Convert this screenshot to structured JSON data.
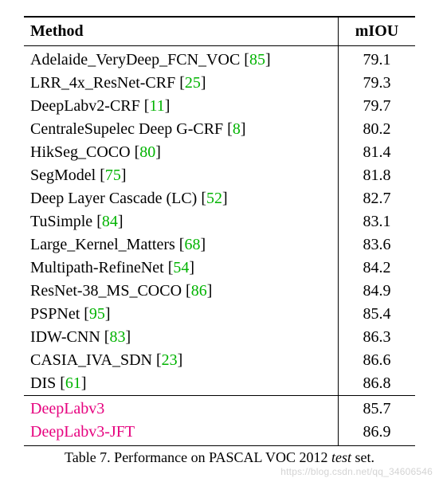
{
  "table": {
    "headers": {
      "method": "Method",
      "miou": "mIOU"
    },
    "rows": [
      {
        "name": "Adelaide_VeryDeep_FCN_VOC",
        "ref": "85",
        "miou": "79.1",
        "pink": false
      },
      {
        "name": "LRR_4x_ResNet-CRF",
        "ref": "25",
        "miou": "79.3",
        "pink": false
      },
      {
        "name": "DeepLabv2-CRF",
        "ref": "11",
        "miou": "79.7",
        "pink": false
      },
      {
        "name": "CentraleSupelec Deep G-CRF",
        "ref": "8",
        "miou": "80.2",
        "pink": false
      },
      {
        "name": "HikSeg_COCO",
        "ref": "80",
        "miou": "81.4",
        "pink": false
      },
      {
        "name": "SegModel",
        "ref": "75",
        "miou": "81.8",
        "pink": false
      },
      {
        "name": "Deep Layer Cascade (LC)",
        "ref": "52",
        "miou": "82.7",
        "pink": false
      },
      {
        "name": "TuSimple",
        "ref": "84",
        "miou": "83.1",
        "pink": false
      },
      {
        "name": "Large_Kernel_Matters",
        "ref": "68",
        "miou": "83.6",
        "pink": false
      },
      {
        "name": "Multipath-RefineNet",
        "ref": "54",
        "miou": "84.2",
        "pink": false
      },
      {
        "name": "ResNet-38_MS_COCO",
        "ref": "86",
        "miou": "84.9",
        "pink": false
      },
      {
        "name": "PSPNet",
        "ref": "95",
        "miou": "85.4",
        "pink": false
      },
      {
        "name": "IDW-CNN",
        "ref": "83",
        "miou": "86.3",
        "pink": false
      },
      {
        "name": "CASIA_IVA_SDN",
        "ref": "23",
        "miou": "86.6",
        "pink": false
      },
      {
        "name": "DIS",
        "ref": "61",
        "miou": "86.8",
        "pink": false
      },
      {
        "name": "DeepLabv3",
        "ref": "",
        "miou": "85.7",
        "pink": true,
        "sep": true
      },
      {
        "name": "DeepLabv3-JFT",
        "ref": "",
        "miou": "86.9",
        "pink": true
      }
    ],
    "colors": {
      "ref": "#00b300",
      "highlight": "#e6007e",
      "rule": "#000000",
      "text": "#000000",
      "background": "#ffffff"
    },
    "fontsize_pt": 20,
    "caption_fontsize_pt": 18
  },
  "caption": {
    "label": "Table 7. Performance on PASCAL VOC 2012 ",
    "ital": "test",
    "tail": " set."
  },
  "watermark": "https://blog.csdn.net/qq_34606546"
}
